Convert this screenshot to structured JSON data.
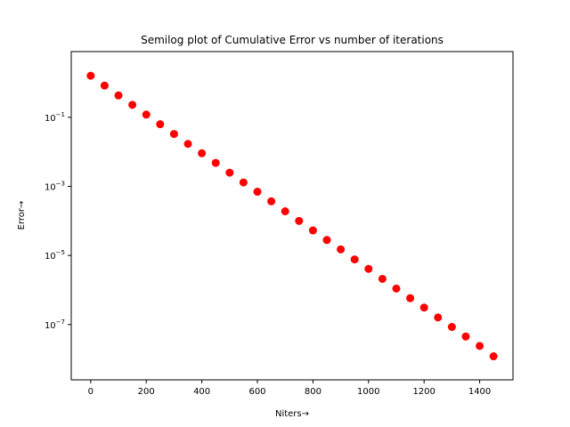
{
  "chart_data": {
    "type": "scatter",
    "title": "Semilog plot of Cumulative Error vs number of iterations",
    "xlabel": "Niters→",
    "ylabel": "Error→",
    "xscale": "linear",
    "yscale": "log",
    "xlim": [
      -70,
      1520
    ],
    "ylim": [
      2.5e-09,
      8.0
    ],
    "xticks": [
      0,
      200,
      400,
      600,
      800,
      1000,
      1200,
      1400
    ],
    "xtick_labels": [
      "0",
      "200",
      "400",
      "600",
      "800",
      "1000",
      "1200",
      "1400"
    ],
    "yticks_exp": [
      -1,
      -3,
      -5,
      -7
    ],
    "grid": false,
    "legend": "none",
    "marker_color": "#ff0000",
    "series": [
      {
        "x": [
          0,
          50,
          100,
          150,
          200,
          250,
          300,
          350,
          400,
          450,
          500,
          550,
          600,
          650,
          700,
          750,
          800,
          850,
          900,
          950,
          1000,
          1050,
          1100,
          1150,
          1200,
          1250,
          1300,
          1350,
          1400,
          1450
        ],
        "y": [
          1.6,
          0.83,
          0.43,
          0.23,
          0.12,
          0.063,
          0.033,
          0.017,
          0.0091,
          0.0048,
          0.0025,
          0.0013,
          0.0007,
          0.00037,
          0.00019,
          0.0001,
          5.3e-05,
          2.8e-05,
          1.5e-05,
          7.7e-06,
          4.1e-06,
          2.1e-06,
          1.1e-06,
          5.8e-07,
          3.1e-07,
          1.6e-07,
          8.5e-08,
          4.5e-08,
          2.4e-08,
          1.2e-08
        ]
      }
    ]
  }
}
